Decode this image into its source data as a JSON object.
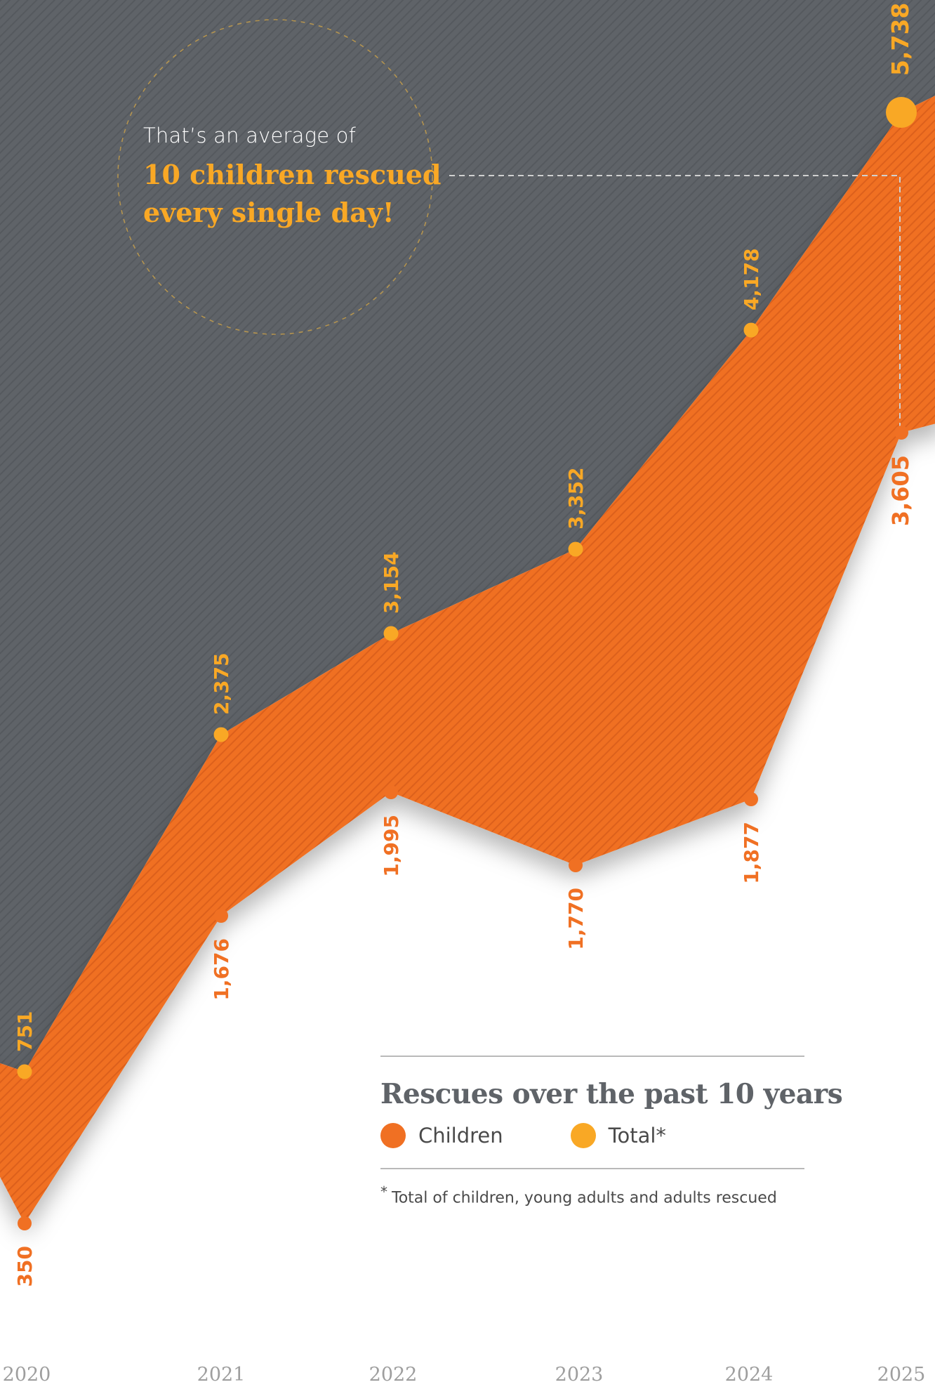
{
  "chart_data": {
    "type": "area",
    "title": "Rescues over the past 10 years",
    "x": [
      "2020",
      "2021",
      "2022",
      "2023",
      "2024",
      "2025"
    ],
    "series": [
      {
        "name": "Children",
        "values": [
          350,
          1676,
          1995,
          1770,
          1877,
          3605
        ],
        "labels": [
          "350",
          "1,676",
          "1,995",
          "1,770",
          "1,877",
          "3,605"
        ],
        "color": "#f07023"
      },
      {
        "name": "Total*",
        "values": [
          751,
          2375,
          3154,
          3352,
          4178,
          5738
        ],
        "labels": [
          "751",
          "2,375",
          "3,154",
          "3,352",
          "4,178",
          "5,738"
        ],
        "color": "#f9a825"
      }
    ],
    "grid": false,
    "legend": "bottom-right",
    "footnote_mark": "*",
    "footnote": "Total of children, young adults and adults rescued"
  },
  "callout": {
    "intro": "That’s an average of",
    "highlight": "10 children rescued every single day!"
  },
  "colors": {
    "total_area": "#5f6368",
    "children_area": "#f07023",
    "total_marker": "#f9a825",
    "children_marker": "#f07023",
    "axis_label": "#9e9e9e"
  }
}
